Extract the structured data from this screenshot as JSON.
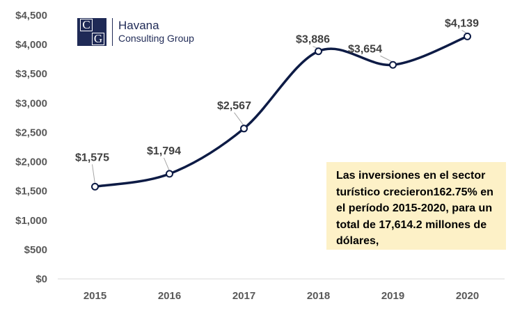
{
  "brand": {
    "mark_letters": [
      "C",
      "G"
    ],
    "name_line1": "Havana",
    "name_line2": "Consulting Group",
    "color": "#1f2a56"
  },
  "note": {
    "text": "Las inversiones en el sector turístico crecieron162.75% en el período 2015-2020, para un total de 17,614.2 millones de dólares,",
    "background": "#fdf1c7"
  },
  "chart_data": {
    "type": "line",
    "title": "",
    "xlabel": "",
    "ylabel": "",
    "categories": [
      "2015",
      "2016",
      "2017",
      "2018",
      "2019",
      "2020"
    ],
    "series": [
      {
        "values": [
          1575,
          1794,
          2567,
          3886,
          3654,
          4139
        ],
        "labels": [
          "$1,575",
          "$1,794",
          "$2,567",
          "$3,886",
          "$3,654",
          "$4,139"
        ],
        "color": "#0d1b45",
        "smooth": true,
        "markers": "hollow-circle"
      }
    ],
    "yticks": [
      "$0",
      "$500",
      "$1,000",
      "$1,500",
      "$2,000",
      "$2,500",
      "$3,000",
      "$3,500",
      "$4,000",
      "$4,500"
    ],
    "ylim": [
      0,
      4500
    ],
    "grid": false,
    "legend": "none"
  }
}
